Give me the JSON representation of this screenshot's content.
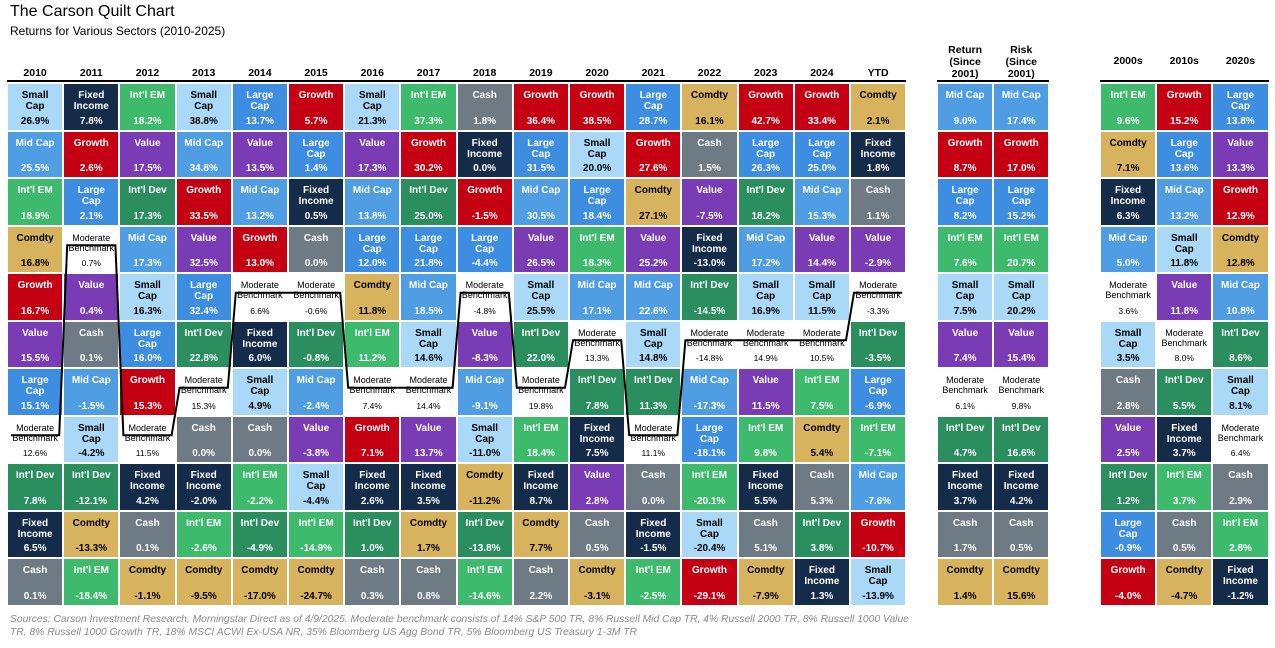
{
  "title": "The Carson Quilt Chart",
  "subtitle": "Returns for Various Sectors (2010-2025)",
  "footnote": "Sources: Carson Investment Research, Morningstar Direct as of 4/9/2025. Moderate benchmark consists of 14% S&P 500 TR, 8% Russell Mid Cap TR, 4% Russell 2000 TR, 8% Russell 1000 Value TR, 8% Russell 1000 Growth TR, 18% MSCI ACWI Ex-USA NR, 35% Bloomberg US Agg Bond TR, 5% Bloomberg US Treasury 1-3M TR",
  "asset_classes": {
    "SC": {
      "name": "Small\nCap",
      "color": "#a9d9f7",
      "text": "#000000"
    },
    "MC": {
      "name": "Mid Cap",
      "color": "#4f9ee3",
      "text": "#ffffff"
    },
    "IE": {
      "name": "Int'l EM",
      "color": "#3dba6c",
      "text": "#ffffff"
    },
    "CO": {
      "name": "Comdty",
      "color": "#d6b35c",
      "text": "#000000"
    },
    "GR": {
      "name": "Growth",
      "color": "#c40012",
      "text": "#ffffff"
    },
    "VA": {
      "name": "Value",
      "color": "#7a3cb4",
      "text": "#ffffff"
    },
    "LC": {
      "name": "Large\nCap",
      "color": "#3d8de0",
      "text": "#ffffff"
    },
    "ID": {
      "name": "Int'l Dev",
      "color": "#2a8e5e",
      "text": "#ffffff"
    },
    "FI": {
      "name": "Fixed\nIncome",
      "color": "#142c4a",
      "text": "#ffffff"
    },
    "CA": {
      "name": "Cash",
      "color": "#6e7b85",
      "text": "#ffffff"
    },
    "MB": {
      "name": "Moderate\nBenchmark",
      "color": "#ffffff",
      "text": "#000000"
    }
  },
  "chart_data": {
    "type": "table",
    "title": "The Carson Quilt Chart",
    "subtitle": "Returns for Various Sectors (2010-2025)",
    "annual": {
      "columns": [
        "2010",
        "2011",
        "2012",
        "2013",
        "2014",
        "2015",
        "2016",
        "2017",
        "2018",
        "2019",
        "2020",
        "2021",
        "2022",
        "2023",
        "2024",
        "YTD"
      ],
      "cells": [
        [
          [
            "SC",
            "26.9%"
          ],
          [
            "MC",
            "25.5%"
          ],
          [
            "IE",
            "18.9%"
          ],
          [
            "CO",
            "16.8%"
          ],
          [
            "GR",
            "16.7%"
          ],
          [
            "VA",
            "15.5%"
          ],
          [
            "LC",
            "15.1%"
          ],
          [
            "MB",
            "12.6%"
          ],
          [
            "ID",
            "7.8%"
          ],
          [
            "FI",
            "6.5%"
          ],
          [
            "CA",
            "0.1%"
          ]
        ],
        [
          [
            "FI",
            "7.8%"
          ],
          [
            "GR",
            "2.6%"
          ],
          [
            "LC",
            "2.1%"
          ],
          [
            "MB",
            "0.7%"
          ],
          [
            "VA",
            "0.4%"
          ],
          [
            "CA",
            "0.1%"
          ],
          [
            "MC",
            "-1.5%"
          ],
          [
            "SC",
            "-4.2%"
          ],
          [
            "ID",
            "-12.1%"
          ],
          [
            "CO",
            "-13.3%"
          ],
          [
            "IE",
            "-18.4%"
          ]
        ],
        [
          [
            "IE",
            "18.2%"
          ],
          [
            "VA",
            "17.5%"
          ],
          [
            "ID",
            "17.3%"
          ],
          [
            "MC",
            "17.3%"
          ],
          [
            "SC",
            "16.3%"
          ],
          [
            "LC",
            "16.0%"
          ],
          [
            "GR",
            "15.3%"
          ],
          [
            "MB",
            "11.5%"
          ],
          [
            "FI",
            "4.2%"
          ],
          [
            "CA",
            "0.1%"
          ],
          [
            "CO",
            "-1.1%"
          ]
        ],
        [
          [
            "SC",
            "38.8%"
          ],
          [
            "MC",
            "34.8%"
          ],
          [
            "GR",
            "33.5%"
          ],
          [
            "VA",
            "32.5%"
          ],
          [
            "LC",
            "32.4%"
          ],
          [
            "ID",
            "22.8%"
          ],
          [
            "MB",
            "15.3%"
          ],
          [
            "CA",
            "0.0%"
          ],
          [
            "FI",
            "-2.0%"
          ],
          [
            "IE",
            "-2.6%"
          ],
          [
            "CO",
            "-9.5%"
          ]
        ],
        [
          [
            "LC",
            "13.7%"
          ],
          [
            "VA",
            "13.5%"
          ],
          [
            "MC",
            "13.2%"
          ],
          [
            "GR",
            "13.0%"
          ],
          [
            "MB",
            "6.6%"
          ],
          [
            "FI",
            "6.0%"
          ],
          [
            "SC",
            "4.9%"
          ],
          [
            "CA",
            "0.0%"
          ],
          [
            "IE",
            "-2.2%"
          ],
          [
            "ID",
            "-4.9%"
          ],
          [
            "CO",
            "-17.0%"
          ]
        ],
        [
          [
            "GR",
            "5.7%"
          ],
          [
            "LC",
            "1.4%"
          ],
          [
            "FI",
            "0.5%"
          ],
          [
            "CA",
            "0.0%"
          ],
          [
            "MB",
            "-0.6%"
          ],
          [
            "ID",
            "-0.8%"
          ],
          [
            "MC",
            "-2.4%"
          ],
          [
            "VA",
            "-3.8%"
          ],
          [
            "SC",
            "-4.4%"
          ],
          [
            "IE",
            "-14.9%"
          ],
          [
            "CO",
            "-24.7%"
          ]
        ],
        [
          [
            "SC",
            "21.3%"
          ],
          [
            "VA",
            "17.3%"
          ],
          [
            "MC",
            "13.8%"
          ],
          [
            "LC",
            "12.0%"
          ],
          [
            "CO",
            "11.8%"
          ],
          [
            "IE",
            "11.2%"
          ],
          [
            "MB",
            "7.4%"
          ],
          [
            "GR",
            "7.1%"
          ],
          [
            "FI",
            "2.6%"
          ],
          [
            "ID",
            "1.0%"
          ],
          [
            "CA",
            "0.3%"
          ]
        ],
        [
          [
            "IE",
            "37.3%"
          ],
          [
            "GR",
            "30.2%"
          ],
          [
            "ID",
            "25.0%"
          ],
          [
            "LC",
            "21.8%"
          ],
          [
            "MC",
            "18.5%"
          ],
          [
            "SC",
            "14.6%"
          ],
          [
            "MB",
            "14.4%"
          ],
          [
            "VA",
            "13.7%"
          ],
          [
            "FI",
            "3.5%"
          ],
          [
            "CO",
            "1.7%"
          ],
          [
            "CA",
            "0.8%"
          ]
        ],
        [
          [
            "CA",
            "1.8%"
          ],
          [
            "FI",
            "0.0%"
          ],
          [
            "GR",
            "-1.5%"
          ],
          [
            "LC",
            "-4.4%"
          ],
          [
            "MB",
            "-4.8%"
          ],
          [
            "VA",
            "-8.3%"
          ],
          [
            "MC",
            "-9.1%"
          ],
          [
            "SC",
            "-11.0%"
          ],
          [
            "CO",
            "-11.2%"
          ],
          [
            "ID",
            "-13.8%"
          ],
          [
            "IE",
            "-14.6%"
          ]
        ],
        [
          [
            "GR",
            "36.4%"
          ],
          [
            "LC",
            "31.5%"
          ],
          [
            "MC",
            "30.5%"
          ],
          [
            "VA",
            "26.5%"
          ],
          [
            "SC",
            "25.5%"
          ],
          [
            "ID",
            "22.0%"
          ],
          [
            "MB",
            "19.8%"
          ],
          [
            "IE",
            "18.4%"
          ],
          [
            "FI",
            "8.7%"
          ],
          [
            "CO",
            "7.7%"
          ],
          [
            "CA",
            "2.2%"
          ]
        ],
        [
          [
            "GR",
            "38.5%"
          ],
          [
            "SC",
            "20.0%"
          ],
          [
            "LC",
            "18.4%"
          ],
          [
            "IE",
            "18.3%"
          ],
          [
            "MC",
            "17.1%"
          ],
          [
            "MB",
            "13.3%"
          ],
          [
            "ID",
            "7.8%"
          ],
          [
            "FI",
            "7.5%"
          ],
          [
            "VA",
            "2.8%"
          ],
          [
            "CA",
            "0.5%"
          ],
          [
            "CO",
            "-3.1%"
          ]
        ],
        [
          [
            "LC",
            "28.7%"
          ],
          [
            "GR",
            "27.6%"
          ],
          [
            "CO",
            "27.1%"
          ],
          [
            "VA",
            "25.2%"
          ],
          [
            "MC",
            "22.6%"
          ],
          [
            "SC",
            "14.8%"
          ],
          [
            "ID",
            "11.3%"
          ],
          [
            "MB",
            "11.1%"
          ],
          [
            "CA",
            "0.0%"
          ],
          [
            "FI",
            "-1.5%"
          ],
          [
            "IE",
            "-2.5%"
          ]
        ],
        [
          [
            "CO",
            "16.1%"
          ],
          [
            "CA",
            "1.5%"
          ],
          [
            "VA",
            "-7.5%"
          ],
          [
            "FI",
            "-13.0%"
          ],
          [
            "ID",
            "-14.5%"
          ],
          [
            "MB",
            "-14.8%"
          ],
          [
            "MC",
            "-17.3%"
          ],
          [
            "LC",
            "-18.1%"
          ],
          [
            "IE",
            "-20.1%"
          ],
          [
            "SC",
            "-20.4%"
          ],
          [
            "GR",
            "-29.1%"
          ]
        ],
        [
          [
            "GR",
            "42.7%"
          ],
          [
            "LC",
            "26.3%"
          ],
          [
            "ID",
            "18.2%"
          ],
          [
            "MC",
            "17.2%"
          ],
          [
            "SC",
            "16.9%"
          ],
          [
            "MB",
            "14.9%"
          ],
          [
            "VA",
            "11.5%"
          ],
          [
            "IE",
            "9.8%"
          ],
          [
            "FI",
            "5.5%"
          ],
          [
            "CA",
            "5.1%"
          ],
          [
            "CO",
            "-7.9%"
          ]
        ],
        [
          [
            "GR",
            "33.4%"
          ],
          [
            "LC",
            "25.0%"
          ],
          [
            "MC",
            "15.3%"
          ],
          [
            "VA",
            "14.4%"
          ],
          [
            "SC",
            "11.5%"
          ],
          [
            "MB",
            "10.5%"
          ],
          [
            "IE",
            "7.5%"
          ],
          [
            "CO",
            "5.4%"
          ],
          [
            "CA",
            "5.3%"
          ],
          [
            "ID",
            "3.8%"
          ],
          [
            "FI",
            "1.3%"
          ]
        ],
        [
          [
            "CO",
            "2.1%"
          ],
          [
            "FI",
            "1.8%"
          ],
          [
            "CA",
            "1.1%"
          ],
          [
            "VA",
            "-2.9%"
          ],
          [
            "MB",
            "-3.3%"
          ],
          [
            "ID",
            "-3.5%"
          ],
          [
            "LC",
            "-6.9%"
          ],
          [
            "IE",
            "-7.1%"
          ],
          [
            "MC",
            "-7.6%"
          ],
          [
            "GR",
            "-10.7%"
          ],
          [
            "SC",
            "-13.9%"
          ]
        ]
      ]
    },
    "since2001": {
      "columns": [
        "Return\n(Since\n2001)",
        "Risk\n(Since\n2001)"
      ],
      "cells": [
        [
          [
            "MC",
            "9.0%"
          ],
          [
            "GR",
            "8.7%"
          ],
          [
            "LC",
            "8.2%"
          ],
          [
            "IE",
            "7.6%"
          ],
          [
            "SC",
            "7.5%"
          ],
          [
            "VA",
            "7.4%"
          ],
          [
            "MB",
            "6.1%"
          ],
          [
            "ID",
            "4.7%"
          ],
          [
            "FI",
            "3.7%"
          ],
          [
            "CA",
            "1.7%"
          ],
          [
            "CO",
            "1.4%"
          ]
        ],
        [
          [
            "MC",
            "17.4%"
          ],
          [
            "GR",
            "17.0%"
          ],
          [
            "LC",
            "15.2%"
          ],
          [
            "IE",
            "20.7%"
          ],
          [
            "SC",
            "20.2%"
          ],
          [
            "VA",
            "15.4%"
          ],
          [
            "MB",
            "9.8%"
          ],
          [
            "ID",
            "16.6%"
          ],
          [
            "FI",
            "4.2%"
          ],
          [
            "CA",
            "0.5%"
          ],
          [
            "CO",
            "15.6%"
          ]
        ]
      ]
    },
    "decades": {
      "columns": [
        "2000s",
        "2010s",
        "2020s"
      ],
      "cells": [
        [
          [
            "IE",
            "9.6%"
          ],
          [
            "CO",
            "7.1%"
          ],
          [
            "FI",
            "6.3%"
          ],
          [
            "MC",
            "5.0%"
          ],
          [
            "MB",
            "3.6%"
          ],
          [
            "SC",
            "3.5%"
          ],
          [
            "CA",
            "2.8%"
          ],
          [
            "VA",
            "2.5%"
          ],
          [
            "ID",
            "1.2%"
          ],
          [
            "LC",
            "-0.9%"
          ],
          [
            "GR",
            "-4.0%"
          ]
        ],
        [
          [
            "GR",
            "15.2%"
          ],
          [
            "LC",
            "13.6%"
          ],
          [
            "MC",
            "13.2%"
          ],
          [
            "SC",
            "11.8%"
          ],
          [
            "VA",
            "11.8%"
          ],
          [
            "MB",
            "8.0%"
          ],
          [
            "ID",
            "5.5%"
          ],
          [
            "FI",
            "3.7%"
          ],
          [
            "IE",
            "3.7%"
          ],
          [
            "CA",
            "0.5%"
          ],
          [
            "CO",
            "-4.7%"
          ]
        ],
        [
          [
            "LC",
            "13.8%"
          ],
          [
            "VA",
            "13.3%"
          ],
          [
            "GR",
            "12.9%"
          ],
          [
            "CO",
            "12.8%"
          ],
          [
            "MC",
            "10.8%"
          ],
          [
            "ID",
            "8.6%"
          ],
          [
            "SC",
            "8.1%"
          ],
          [
            "MB",
            "6.4%"
          ],
          [
            "CA",
            "2.9%"
          ],
          [
            "IE",
            "2.8%"
          ],
          [
            "FI",
            "-1.2%"
          ]
        ]
      ]
    }
  }
}
